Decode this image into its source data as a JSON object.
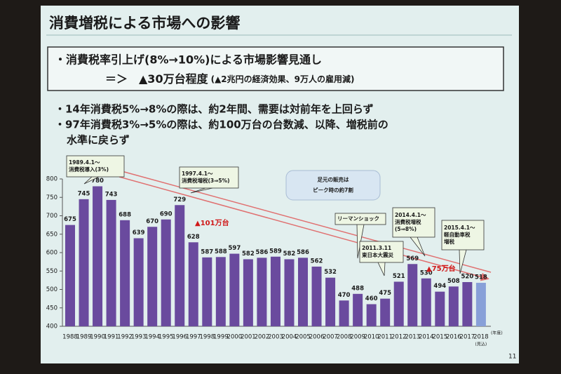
{
  "slide": {
    "title": "消費増税による市場への影響",
    "box_line1": "・消費税率引上げ(8%→10%)による市場影響見通し",
    "box_line2_main": "＝＞　▲30万台程度",
    "box_line2_note": "(▲2兆円の経済効果、9万人の雇用減)",
    "bullets": [
      "・14年消費税5%→8%の際は、約2年間、需要は対前年を上回らず",
      "・97年消費税3%→5%の際は、約100万台の台数減、以降、増税前の",
      "水準に戻らず"
    ],
    "page_number": "11"
  },
  "chart_data": {
    "type": "bar",
    "categories": [
      "1988",
      "1989",
      "1990",
      "1991",
      "1992",
      "1993",
      "1994",
      "1995",
      "1996",
      "1997",
      "1998",
      "1999",
      "2000",
      "2001",
      "2002",
      "2003",
      "2004",
      "2005",
      "2006",
      "2007",
      "2008",
      "2009",
      "2010",
      "2011",
      "2012",
      "2013",
      "2014",
      "2015",
      "2016",
      "2017",
      "2018"
    ],
    "values": [
      675,
      745,
      780,
      743,
      688,
      639,
      670,
      690,
      729,
      628,
      587,
      588,
      597,
      582,
      586,
      589,
      582,
      586,
      562,
      532,
      470,
      488,
      460,
      475,
      521,
      569,
      530,
      494,
      508,
      520,
      518
    ],
    "colors": [
      "#6a4a9e",
      "#6a4a9e",
      "#6a4a9e",
      "#6a4a9e",
      "#6a4a9e",
      "#6a4a9e",
      "#6a4a9e",
      "#6a4a9e",
      "#6a4a9e",
      "#6a4a9e",
      "#6a4a9e",
      "#6a4a9e",
      "#6a4a9e",
      "#6a4a9e",
      "#6a4a9e",
      "#6a4a9e",
      "#6a4a9e",
      "#6a4a9e",
      "#6a4a9e",
      "#6a4a9e",
      "#6a4a9e",
      "#6a4a9e",
      "#6a4a9e",
      "#6a4a9e",
      "#6a4a9e",
      "#6a4a9e",
      "#6a4a9e",
      "#6a4a9e",
      "#6a4a9e",
      "#6a4a9e",
      "#88a0d8"
    ],
    "ylim": [
      400,
      800
    ],
    "yticks": [
      400,
      450,
      500,
      550,
      600,
      650,
      700,
      750,
      800
    ],
    "x_unit": "(年度)",
    "x_note": "(見込)",
    "annotations": [
      {
        "lines": [
          "1989.4.1～",
          "消費税導入(3%)"
        ]
      },
      {
        "lines": [
          "1997.4.1～",
          "消費税増税(3⇒5%)"
        ]
      },
      {
        "lines": [
          "足元の販売は",
          "ピーク時の約7割"
        ]
      },
      {
        "lines": [
          "▲101万台"
        ]
      },
      {
        "lines": [
          "リーマンショック"
        ]
      },
      {
        "lines": [
          "2011.3.11",
          "東日本大震災"
        ]
      },
      {
        "lines": [
          "2014.4.1～",
          "消費税増税",
          "(5⇒8%)"
        ]
      },
      {
        "lines": [
          "▲75万台"
        ]
      },
      {
        "lines": [
          "2015.4.1～",
          "軽自動車税",
          "増税"
        ]
      }
    ]
  }
}
